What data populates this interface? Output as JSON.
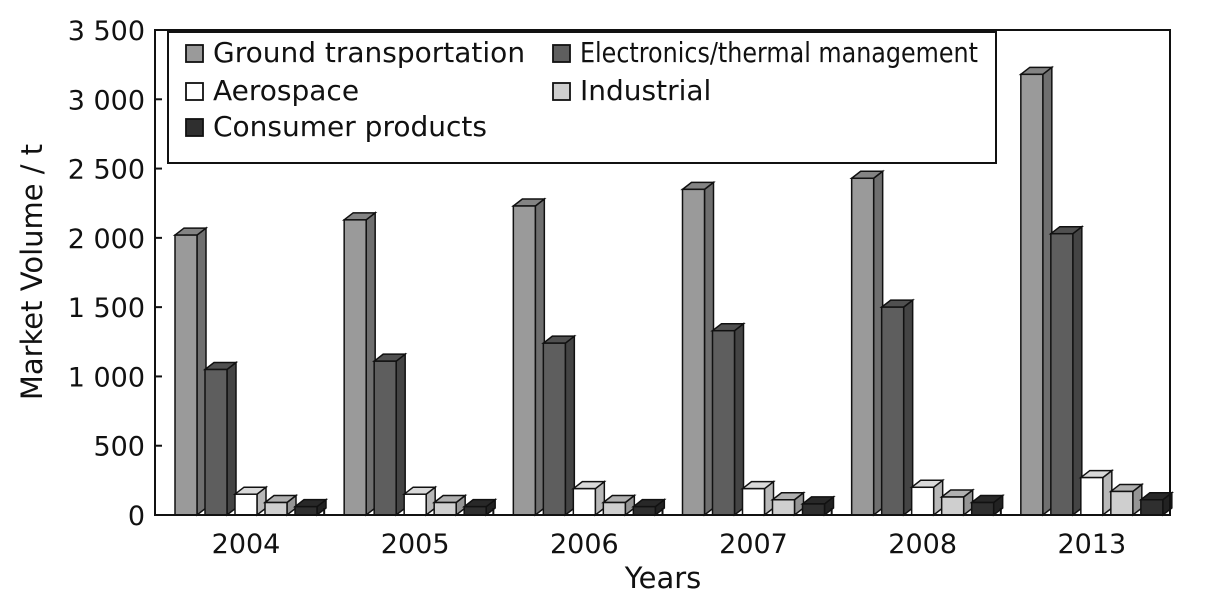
{
  "chart_data": {
    "type": "bar",
    "title": "",
    "xlabel": "Years",
    "ylabel": "Market Volume / t",
    "categories": [
      "2004",
      "2005",
      "2006",
      "2007",
      "2008",
      "2013"
    ],
    "ylim": [
      0,
      3500
    ],
    "yticks": [
      0,
      500,
      1000,
      1500,
      2000,
      2500,
      3000,
      3500
    ],
    "ytick_labels": [
      "0",
      "500",
      "1 000",
      "1 500",
      "2 000",
      "2 500",
      "3 000",
      "3 500"
    ],
    "grid": false,
    "legend_position": "top-left",
    "series": [
      {
        "name": "Ground transportation",
        "color": "#9a9a9a",
        "values": [
          2020,
          2130,
          2230,
          2350,
          2430,
          3180
        ]
      },
      {
        "name": "Electronics/thermal management",
        "color": "#5e5e5e",
        "values": [
          1050,
          1110,
          1240,
          1330,
          1500,
          2030
        ]
      },
      {
        "name": "Aerospace",
        "color": "#ffffff",
        "values": [
          150,
          150,
          190,
          190,
          200,
          270
        ]
      },
      {
        "name": "Industrial",
        "color": "#cfcfcf",
        "values": [
          90,
          90,
          90,
          110,
          130,
          170
        ]
      },
      {
        "name": "Consumer products",
        "color": "#2f2f2f",
        "values": [
          60,
          60,
          60,
          80,
          90,
          110
        ]
      }
    ]
  }
}
